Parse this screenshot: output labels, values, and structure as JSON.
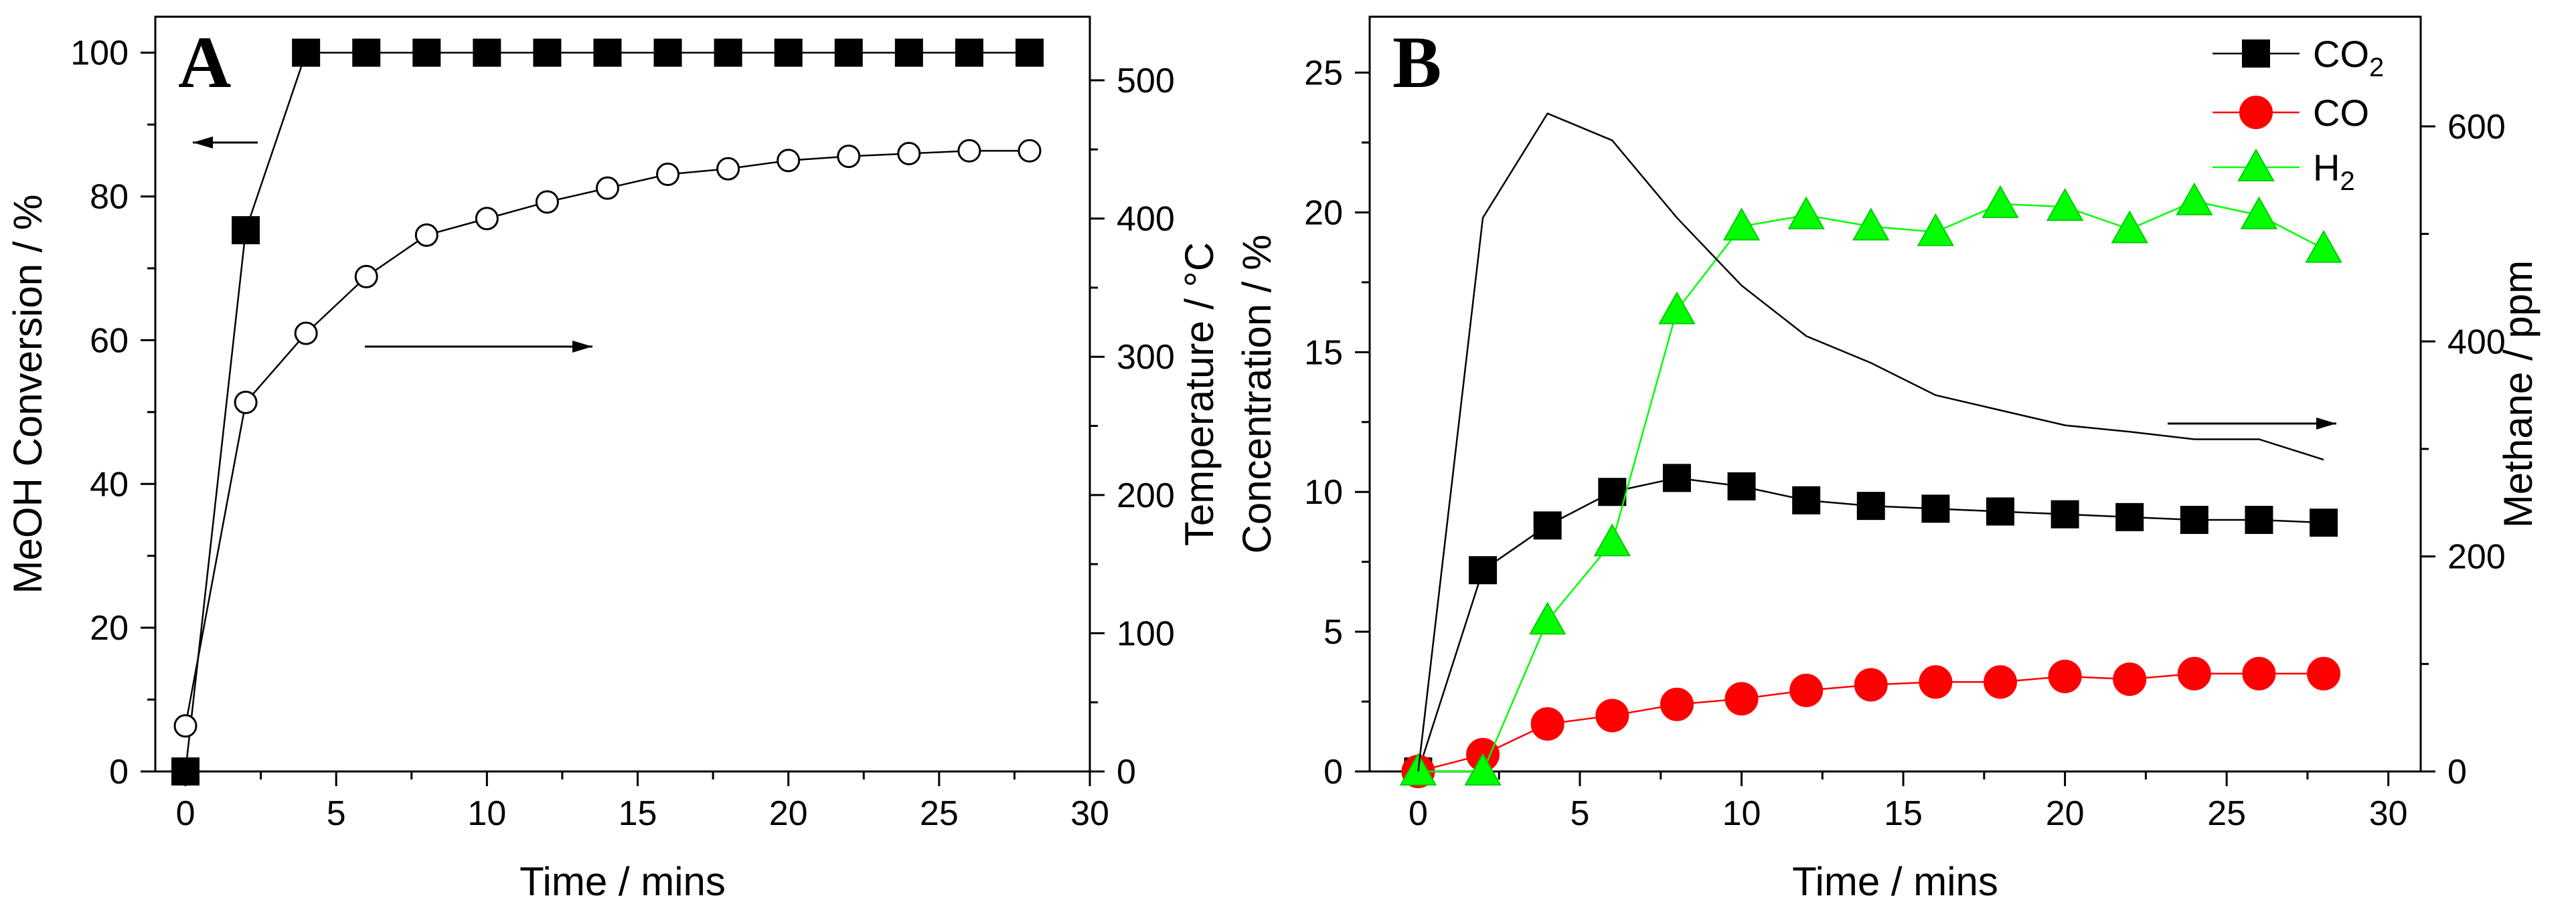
{
  "chart_data": [
    {
      "panel_label": "A",
      "type": "line",
      "xlabel": "Time / mins",
      "ylabel": "MeOH Conversion / %",
      "y2label": "Temperature / °C",
      "xlim": [
        -1,
        30
      ],
      "ylim": [
        0,
        105
      ],
      "y2lim": [
        0,
        546
      ],
      "xticks": [
        0,
        5,
        10,
        15,
        20,
        25,
        30
      ],
      "yticks": [
        0,
        20,
        40,
        60,
        80,
        100
      ],
      "y2ticks": [
        0,
        100,
        200,
        300,
        400,
        500
      ],
      "series": [
        {
          "name": "MeOH Conversion",
          "axis": "left",
          "marker": "square",
          "color": "#000000",
          "x": [
            0,
            2,
            4,
            6,
            8,
            10,
            12,
            14,
            16,
            18,
            20,
            22,
            24,
            26,
            28
          ],
          "y": [
            0,
            75.3,
            100,
            100,
            100,
            100,
            100,
            100,
            100,
            100,
            100,
            100,
            100,
            100,
            100
          ]
        },
        {
          "name": "Temperature",
          "axis": "right",
          "marker": "circle-open",
          "color": "#000000",
          "x": [
            0,
            2,
            4,
            6,
            8,
            10,
            12,
            14,
            16,
            18,
            20,
            22,
            24,
            26,
            28
          ],
          "y": [
            33,
            267,
            317,
            358,
            388,
            400,
            412,
            422,
            432,
            436,
            442,
            445,
            447,
            449,
            449
          ]
        }
      ],
      "annotations": [
        {
          "type": "arrow",
          "direction": "left",
          "points_to": "left axis"
        },
        {
          "type": "arrow",
          "direction": "right",
          "points_to": "right axis"
        }
      ]
    },
    {
      "panel_label": "B",
      "type": "line",
      "xlabel": "Time / mins",
      "ylabel": "Concentration / %",
      "y2label": "Methane / ppm",
      "xlim": [
        -1.5,
        31
      ],
      "ylim": [
        0,
        27
      ],
      "y2lim": [
        0,
        702
      ],
      "xticks": [
        0,
        5,
        10,
        15,
        20,
        25,
        30
      ],
      "yticks": [
        0,
        5,
        10,
        15,
        20,
        25
      ],
      "y2ticks": [
        0,
        200,
        400,
        600
      ],
      "legend_position": "top-right",
      "series": [
        {
          "name": "CO2",
          "legend_label": "CO",
          "legend_subscript": "2",
          "axis": "left",
          "marker": "square",
          "color": "#000000",
          "x": [
            0,
            2,
            4,
            6,
            8,
            10,
            12,
            14,
            16,
            18,
            20,
            22,
            24,
            26,
            28
          ],
          "y": [
            0,
            7.2,
            8.8,
            10.0,
            10.5,
            10.2,
            9.7,
            9.5,
            9.4,
            9.3,
            9.2,
            9.1,
            9.0,
            9.0,
            8.9
          ]
        },
        {
          "name": "CO",
          "legend_label": "CO",
          "legend_subscript": "",
          "axis": "left",
          "marker": "circle",
          "color": "#ff0000",
          "x": [
            0,
            2,
            4,
            6,
            8,
            10,
            12,
            14,
            16,
            18,
            20,
            22,
            24,
            26,
            28
          ],
          "y": [
            0,
            0.6,
            1.7,
            2.0,
            2.4,
            2.6,
            2.9,
            3.1,
            3.2,
            3.2,
            3.4,
            3.3,
            3.5,
            3.5,
            3.5
          ]
        },
        {
          "name": "H2",
          "legend_label": "H",
          "legend_subscript": "2",
          "axis": "left",
          "marker": "triangle",
          "color": "#00ff00",
          "x": [
            0,
            2,
            4,
            6,
            8,
            10,
            12,
            14,
            16,
            18,
            20,
            22,
            24,
            26,
            28
          ],
          "y": [
            0,
            0,
            5.4,
            8.2,
            16.5,
            19.5,
            19.9,
            19.5,
            19.3,
            20.3,
            20.2,
            19.4,
            20.4,
            19.9,
            18.7
          ]
        },
        {
          "name": "Methane",
          "axis": "right",
          "marker": "none",
          "color": "#000000",
          "x": [
            0,
            2,
            4,
            6,
            8,
            10,
            12,
            14,
            16,
            18,
            20,
            22,
            24,
            26,
            28
          ],
          "y": [
            0,
            515,
            612,
            587,
            515,
            452,
            405,
            380,
            350,
            336,
            322,
            316,
            309,
            309,
            290
          ]
        }
      ],
      "annotations": [
        {
          "type": "arrow",
          "direction": "right",
          "points_to": "right axis"
        }
      ]
    }
  ]
}
